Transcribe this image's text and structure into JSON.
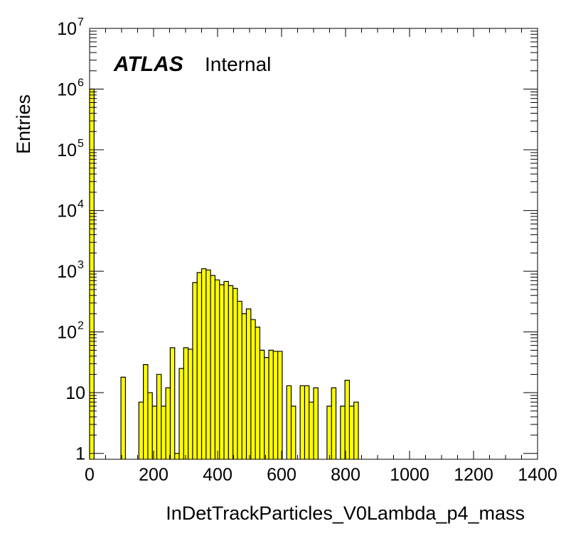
{
  "chart_data": {
    "type": "bar",
    "title": "",
    "xlabel": "InDetTrackParticles_V0Lambda_p4_mass",
    "ylabel": "Entries",
    "label_bold": "ATLAS",
    "label_text": "Internal",
    "xlim": [
      0,
      1400
    ],
    "ylim": [
      0.8,
      10000000
    ],
    "log_y": true,
    "fill_color": "#ffff00",
    "edge_color": "#000000",
    "bin_width": 14,
    "x_ticks": [
      "0",
      "200",
      "400",
      "600",
      "800",
      "1000",
      "1200",
      "1400"
    ],
    "x_tick_values": [
      0,
      200,
      400,
      600,
      800,
      1000,
      1200,
      1400
    ],
    "y_ticks": [
      {
        "value": 1,
        "base": "1",
        "exp": ""
      },
      {
        "value": 10,
        "base": "10",
        "exp": ""
      },
      {
        "value": 100,
        "base": "10",
        "exp": "2"
      },
      {
        "value": 1000,
        "base": "10",
        "exp": "3"
      },
      {
        "value": 10000,
        "base": "10",
        "exp": "4"
      },
      {
        "value": 100000,
        "base": "10",
        "exp": "5"
      },
      {
        "value": 1000000,
        "base": "10",
        "exp": "6"
      },
      {
        "value": 10000000,
        "base": "10",
        "exp": "7"
      }
    ],
    "bins": [
      [
        0,
        1000000
      ],
      [
        98,
        18
      ],
      [
        154,
        7
      ],
      [
        168,
        29
      ],
      [
        182,
        10
      ],
      [
        196,
        6
      ],
      [
        210,
        20
      ],
      [
        224,
        6
      ],
      [
        238,
        12
      ],
      [
        252,
        55
      ],
      [
        266,
        1.0
      ],
      [
        280,
        25
      ],
      [
        294,
        55
      ],
      [
        308,
        52
      ],
      [
        322,
        650
      ],
      [
        336,
        950
      ],
      [
        350,
        1100
      ],
      [
        364,
        1050
      ],
      [
        378,
        850
      ],
      [
        392,
        720
      ],
      [
        406,
        600
      ],
      [
        420,
        680
      ],
      [
        434,
        580
      ],
      [
        448,
        520
      ],
      [
        462,
        320
      ],
      [
        476,
        200
      ],
      [
        490,
        240
      ],
      [
        504,
        160
      ],
      [
        518,
        120
      ],
      [
        532,
        50
      ],
      [
        546,
        38
      ],
      [
        560,
        50
      ],
      [
        574,
        48
      ],
      [
        588,
        48
      ],
      [
        616,
        13
      ],
      [
        630,
        6
      ],
      [
        658,
        13
      ],
      [
        672,
        13
      ],
      [
        686,
        7
      ],
      [
        700,
        12
      ],
      [
        742,
        6
      ],
      [
        756,
        12
      ],
      [
        784,
        6
      ],
      [
        798,
        16
      ],
      [
        812,
        6
      ],
      [
        826,
        7
      ]
    ]
  }
}
